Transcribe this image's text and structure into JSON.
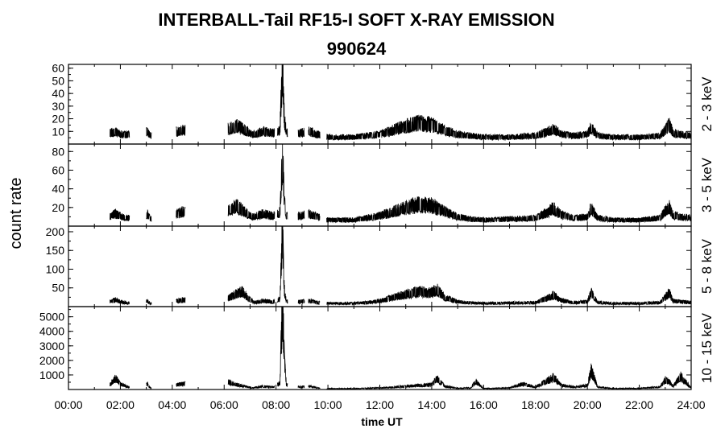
{
  "title": "INTERBALL-Tail RF15-I SOFT X-RAY EMISSION",
  "subtitle": "990624",
  "chart_data": {
    "type": "line",
    "title": "INTERBALL-Tail RF15-I SOFT X-RAY EMISSION",
    "subtitle": "990624",
    "xlabel": "time UT",
    "ylabel": "count rate",
    "xlim_hours": [
      0,
      24
    ],
    "x_tick_labels": [
      "00:00",
      "02:00",
      "04:00",
      "06:00",
      "08:00",
      "10:00",
      "12:00",
      "14:00",
      "16:00",
      "18:00",
      "20:00",
      "22:00",
      "24:00"
    ],
    "line_color": "#000000",
    "grid": false,
    "series": [
      {
        "name": "2 - 3 keV",
        "ylim": [
          0,
          63
        ],
        "yticks": [
          10,
          20,
          30,
          40,
          50,
          60
        ],
        "segments": [
          [
            1.6,
            2.35
          ],
          [
            3.0,
            3.2
          ],
          [
            4.15,
            4.5
          ],
          [
            6.15,
            7.95
          ],
          [
            8.05,
            8.45
          ],
          [
            8.85,
            9.1
          ],
          [
            9.25,
            9.7
          ],
          [
            9.95,
            24.0
          ]
        ],
        "points": [
          [
            1.6,
            8
          ],
          [
            1.8,
            9
          ],
          [
            2.0,
            7
          ],
          [
            2.3,
            7
          ],
          [
            3.05,
            9
          ],
          [
            3.15,
            6
          ],
          [
            4.2,
            9
          ],
          [
            4.4,
            10
          ],
          [
            6.2,
            11
          ],
          [
            6.5,
            13
          ],
          [
            6.8,
            10
          ],
          [
            7.1,
            7
          ],
          [
            7.5,
            9
          ],
          [
            7.9,
            8
          ],
          [
            8.15,
            10
          ],
          [
            8.25,
            58
          ],
          [
            8.32,
            18
          ],
          [
            8.4,
            8
          ],
          [
            8.9,
            8
          ],
          [
            9.3,
            9
          ],
          [
            9.6,
            7
          ],
          [
            10,
            5
          ],
          [
            11,
            5
          ],
          [
            11.5,
            6
          ],
          [
            12,
            7
          ],
          [
            12.5,
            10
          ],
          [
            13,
            13
          ],
          [
            13.5,
            15
          ],
          [
            14,
            14
          ],
          [
            14.5,
            10
          ],
          [
            15,
            7
          ],
          [
            15.5,
            6
          ],
          [
            16,
            5
          ],
          [
            17,
            5
          ],
          [
            18,
            6
          ],
          [
            18.5,
            9
          ],
          [
            18.7,
            11
          ],
          [
            19,
            7
          ],
          [
            19.5,
            6
          ],
          [
            20,
            7
          ],
          [
            20.15,
            12
          ],
          [
            20.4,
            6
          ],
          [
            21,
            5
          ],
          [
            22,
            5
          ],
          [
            22.8,
            6
          ],
          [
            23,
            10
          ],
          [
            23.15,
            14
          ],
          [
            23.3,
            8
          ],
          [
            23.6,
            7
          ],
          [
            24,
            6
          ]
        ]
      },
      {
        "name": "3 - 5 keV",
        "ylim": [
          0,
          88
        ],
        "yticks": [
          20,
          40,
          60,
          80
        ],
        "segments": [
          [
            1.6,
            2.35
          ],
          [
            3.0,
            3.2
          ],
          [
            4.15,
            4.5
          ],
          [
            6.15,
            7.95
          ],
          [
            8.05,
            8.45
          ],
          [
            8.85,
            9.1
          ],
          [
            9.25,
            9.7
          ],
          [
            9.95,
            24.0
          ]
        ],
        "points": [
          [
            1.6,
            10
          ],
          [
            1.8,
            12
          ],
          [
            2.0,
            10
          ],
          [
            2.3,
            8
          ],
          [
            3.05,
            12
          ],
          [
            3.15,
            7
          ],
          [
            4.2,
            12
          ],
          [
            4.4,
            14
          ],
          [
            6.2,
            16
          ],
          [
            6.5,
            19
          ],
          [
            6.8,
            14
          ],
          [
            7.1,
            9
          ],
          [
            7.5,
            12
          ],
          [
            7.9,
            10
          ],
          [
            8.15,
            14
          ],
          [
            8.25,
            70
          ],
          [
            8.32,
            24
          ],
          [
            8.4,
            10
          ],
          [
            8.9,
            10
          ],
          [
            9.3,
            12
          ],
          [
            9.6,
            9
          ],
          [
            10,
            6
          ],
          [
            11,
            6
          ],
          [
            11.5,
            8
          ],
          [
            12,
            10
          ],
          [
            12.5,
            14
          ],
          [
            13,
            18
          ],
          [
            13.5,
            21
          ],
          [
            14,
            20
          ],
          [
            14.5,
            14
          ],
          [
            15,
            9
          ],
          [
            15.5,
            7
          ],
          [
            16,
            6
          ],
          [
            17,
            7
          ],
          [
            18,
            8
          ],
          [
            18.5,
            14
          ],
          [
            18.7,
            17
          ],
          [
            19,
            11
          ],
          [
            19.5,
            8
          ],
          [
            20,
            9
          ],
          [
            20.15,
            18
          ],
          [
            20.4,
            8
          ],
          [
            21,
            6
          ],
          [
            22,
            6
          ],
          [
            22.8,
            8
          ],
          [
            23,
            15
          ],
          [
            23.15,
            19
          ],
          [
            23.3,
            11
          ],
          [
            23.6,
            9
          ],
          [
            24,
            8
          ]
        ]
      },
      {
        "name": "5 - 8 keV",
        "ylim": [
          0,
          215
        ],
        "yticks": [
          50,
          100,
          150,
          200
        ],
        "segments": [
          [
            1.6,
            2.35
          ],
          [
            3.0,
            3.2
          ],
          [
            4.15,
            4.5
          ],
          [
            6.15,
            7.95
          ],
          [
            8.05,
            8.45
          ],
          [
            8.85,
            9.1
          ],
          [
            9.25,
            9.7
          ],
          [
            9.95,
            24.0
          ]
        ],
        "points": [
          [
            1.6,
            12
          ],
          [
            1.8,
            16
          ],
          [
            2.0,
            12
          ],
          [
            2.3,
            8
          ],
          [
            3.05,
            14
          ],
          [
            3.15,
            7
          ],
          [
            4.2,
            14
          ],
          [
            4.4,
            16
          ],
          [
            6.2,
            22
          ],
          [
            6.5,
            32
          ],
          [
            6.7,
            36
          ],
          [
            6.9,
            22
          ],
          [
            7.2,
            10
          ],
          [
            7.5,
            14
          ],
          [
            7.9,
            12
          ],
          [
            8.15,
            20
          ],
          [
            8.25,
            190
          ],
          [
            8.32,
            40
          ],
          [
            8.4,
            12
          ],
          [
            8.9,
            12
          ],
          [
            9.3,
            14
          ],
          [
            9.6,
            10
          ],
          [
            10,
            8
          ],
          [
            11,
            8
          ],
          [
            11.5,
            10
          ],
          [
            12,
            14
          ],
          [
            12.5,
            22
          ],
          [
            13,
            30
          ],
          [
            13.5,
            36
          ],
          [
            14,
            34
          ],
          [
            14.2,
            42
          ],
          [
            14.5,
            22
          ],
          [
            15,
            12
          ],
          [
            15.5,
            9
          ],
          [
            16,
            8
          ],
          [
            17,
            9
          ],
          [
            18,
            10
          ],
          [
            18.5,
            22
          ],
          [
            18.7,
            28
          ],
          [
            19,
            15
          ],
          [
            19.5,
            10
          ],
          [
            20,
            12
          ],
          [
            20.15,
            35
          ],
          [
            20.4,
            10
          ],
          [
            21,
            8
          ],
          [
            22,
            8
          ],
          [
            22.8,
            10
          ],
          [
            23,
            22
          ],
          [
            23.15,
            34
          ],
          [
            23.3,
            14
          ],
          [
            23.6,
            12
          ],
          [
            24,
            10
          ]
        ]
      },
      {
        "name": "10 - 15 keV",
        "ylim": [
          0,
          5700
        ],
        "yticks": [
          1000,
          2000,
          3000,
          4000,
          5000
        ],
        "segments": [
          [
            1.6,
            2.35
          ],
          [
            3.0,
            3.2
          ],
          [
            4.15,
            4.5
          ],
          [
            6.15,
            7.95
          ],
          [
            8.05,
            8.45
          ],
          [
            8.85,
            9.1
          ],
          [
            9.25,
            9.7
          ],
          [
            9.95,
            24.0
          ]
        ],
        "points": [
          [
            1.6,
            300
          ],
          [
            1.8,
            700
          ],
          [
            2.0,
            350
          ],
          [
            2.3,
            150
          ],
          [
            3.05,
            350
          ],
          [
            3.15,
            100
          ],
          [
            4.2,
            300
          ],
          [
            4.4,
            350
          ],
          [
            6.2,
            450
          ],
          [
            6.5,
            300
          ],
          [
            6.8,
            200
          ],
          [
            7.1,
            100
          ],
          [
            7.5,
            200
          ],
          [
            7.9,
            150
          ],
          [
            8.15,
            400
          ],
          [
            8.25,
            5550
          ],
          [
            8.32,
            1900
          ],
          [
            8.4,
            300
          ],
          [
            8.9,
            150
          ],
          [
            9.3,
            200
          ],
          [
            9.6,
            100
          ],
          [
            10,
            50
          ],
          [
            11,
            60
          ],
          [
            12,
            100
          ],
          [
            13,
            200
          ],
          [
            13.5,
            250
          ],
          [
            14,
            300
          ],
          [
            14.2,
            700
          ],
          [
            14.5,
            200
          ],
          [
            15,
            80
          ],
          [
            15.5,
            100
          ],
          [
            15.7,
            500
          ],
          [
            16,
            60
          ],
          [
            17,
            100
          ],
          [
            17.5,
            350
          ],
          [
            18,
            150
          ],
          [
            18.5,
            600
          ],
          [
            18.7,
            750
          ],
          [
            19,
            250
          ],
          [
            19.5,
            150
          ],
          [
            20,
            250
          ],
          [
            20.15,
            1200
          ],
          [
            20.4,
            150
          ],
          [
            21,
            60
          ],
          [
            22,
            80
          ],
          [
            22.8,
            150
          ],
          [
            23,
            600
          ],
          [
            23.15,
            500
          ],
          [
            23.3,
            200
          ],
          [
            23.6,
            800
          ],
          [
            24,
            100
          ]
        ]
      }
    ]
  }
}
